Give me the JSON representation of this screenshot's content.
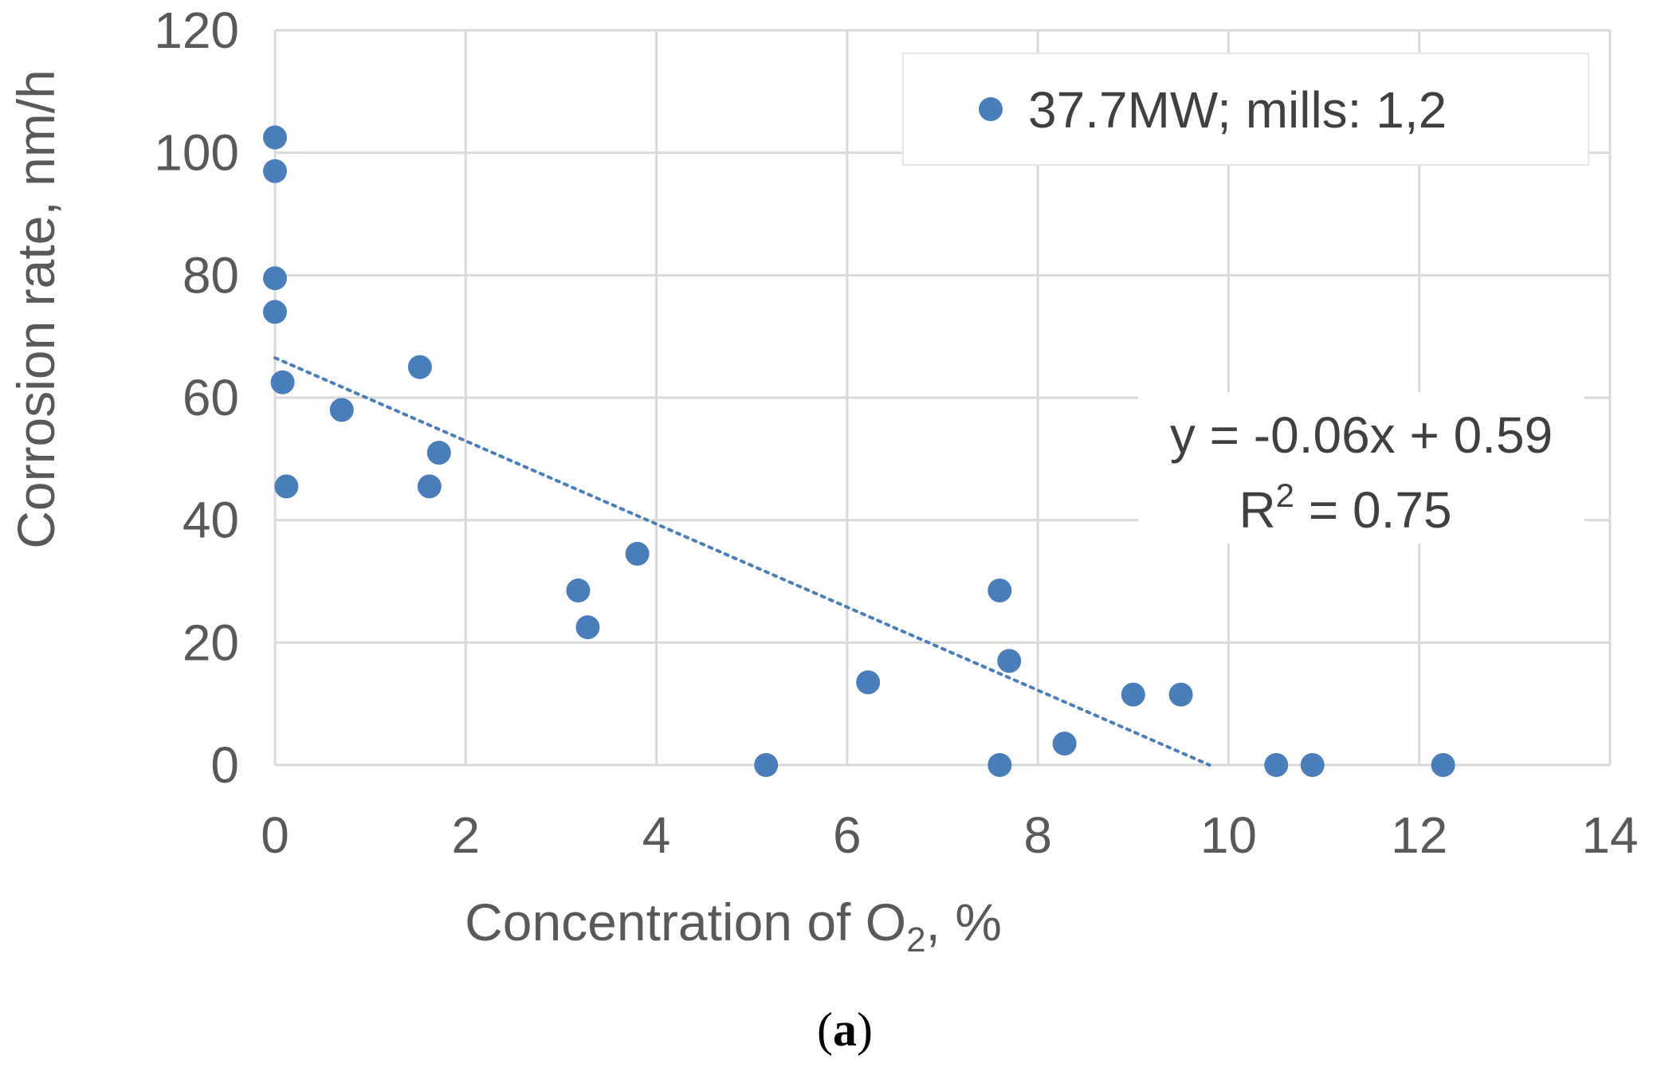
{
  "chart_data": {
    "type": "scatter",
    "title": "",
    "xlabel": "Concentration of O",
    "xlabel_subscript": "2",
    "xlabel_suffix": ", %",
    "ylabel": "Corrosion rate, nm/h",
    "xlim": [
      0,
      14
    ],
    "ylim": [
      0,
      120
    ],
    "x_ticks": [
      0,
      2,
      4,
      6,
      8,
      10,
      12,
      14
    ],
    "y_ticks": [
      0,
      20,
      40,
      60,
      80,
      100,
      120
    ],
    "x_tick_labels": [
      "0",
      "2",
      "4",
      "6",
      "8",
      "10",
      "12",
      "14"
    ],
    "y_tick_labels": [
      "0",
      "20",
      "40",
      "60",
      "80",
      "100",
      "120"
    ],
    "grid": true,
    "legend": "top-right",
    "series": [
      {
        "name": "37.7MW; mills: 1,2",
        "color": "#4a7ebb",
        "points": [
          {
            "x": 0.0,
            "y": 102.5
          },
          {
            "x": 0.0,
            "y": 97.0
          },
          {
            "x": 0.0,
            "y": 79.5
          },
          {
            "x": 0.0,
            "y": 74.0
          },
          {
            "x": 0.08,
            "y": 62.5
          },
          {
            "x": 0.12,
            "y": 45.5
          },
          {
            "x": 0.7,
            "y": 58.0
          },
          {
            "x": 1.52,
            "y": 65.0
          },
          {
            "x": 1.62,
            "y": 45.5
          },
          {
            "x": 1.72,
            "y": 51.0
          },
          {
            "x": 3.18,
            "y": 28.5
          },
          {
            "x": 3.28,
            "y": 22.5
          },
          {
            "x": 3.8,
            "y": 34.5
          },
          {
            "x": 5.15,
            "y": 0.0
          },
          {
            "x": 6.22,
            "y": 13.5
          },
          {
            "x": 7.6,
            "y": 28.5
          },
          {
            "x": 7.6,
            "y": 0.0
          },
          {
            "x": 7.7,
            "y": 17.0
          },
          {
            "x": 8.28,
            "y": 3.5
          },
          {
            "x": 9.0,
            "y": 11.5
          },
          {
            "x": 9.5,
            "y": 11.5
          },
          {
            "x": 10.5,
            "y": 0.0
          },
          {
            "x": 10.88,
            "y": 0.0
          },
          {
            "x": 12.25,
            "y": 0.0
          }
        ]
      }
    ],
    "trendline": {
      "style": "dotted",
      "color": "#4a7ebb",
      "x_start": 0.0,
      "y_start": 66.5,
      "x_end": 9.8,
      "y_end": 0.0
    },
    "annotation": {
      "equation": "y = -0.06x + 0.59",
      "r2_prefix": "R",
      "r2_superscript": "2",
      "r2_suffix": " = 0.75"
    }
  },
  "caption": {
    "open": "(",
    "letter": "a",
    "close": ")"
  }
}
